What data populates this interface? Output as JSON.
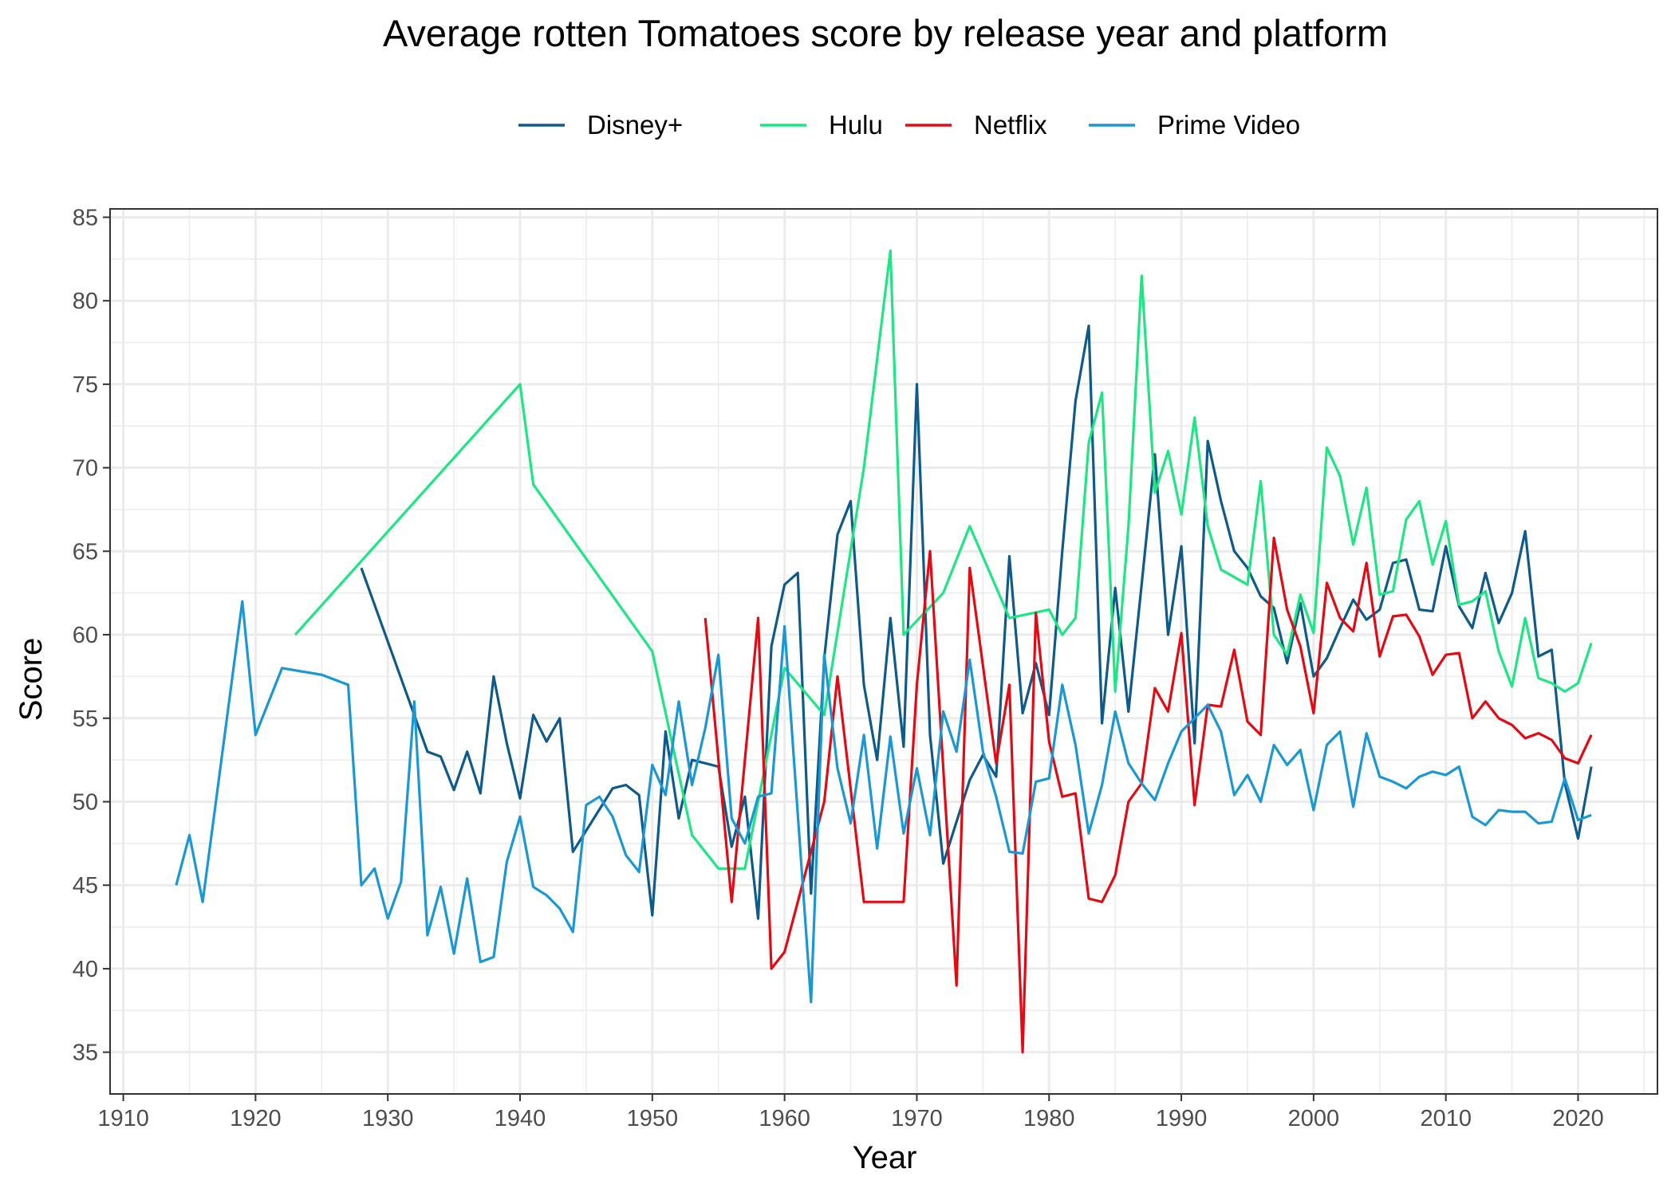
{
  "chart_data": {
    "type": "line",
    "title": "Average rotten Tomatoes score by release year and platform",
    "xlabel": "Year",
    "ylabel": "Score",
    "xlim": [
      1909,
      2026
    ],
    "ylim": [
      32.5,
      85.5
    ],
    "x_ticks": [
      1910,
      1920,
      1930,
      1940,
      1950,
      1960,
      1970,
      1980,
      1990,
      2000,
      2010,
      2020
    ],
    "y_ticks": [
      35,
      40,
      45,
      50,
      55,
      60,
      65,
      70,
      75,
      80,
      85
    ],
    "grid": true,
    "legend_position": "top",
    "series": [
      {
        "name": "Disney+",
        "color": "#0e5a8a",
        "x": [
          1928,
          1933,
          1934,
          1935,
          1936,
          1937,
          1938,
          1939,
          1940,
          1941,
          1942,
          1943,
          1944,
          1947,
          1948,
          1949,
          1950,
          1951,
          1952,
          1953,
          1955,
          1956,
          1957,
          1958,
          1959,
          1960,
          1961,
          1962,
          1963,
          1964,
          1965,
          1966,
          1967,
          1968,
          1969,
          1970,
          1971,
          1972,
          1974,
          1975,
          1976,
          1977,
          1978,
          1979,
          1980,
          1981,
          1982,
          1983,
          1984,
          1985,
          1986,
          1987,
          1988,
          1989,
          1990,
          1991,
          1992,
          1993,
          1994,
          1995,
          1996,
          1997,
          1998,
          1999,
          2000,
          2001,
          2002,
          2003,
          2004,
          2005,
          2006,
          2007,
          2008,
          2009,
          2010,
          2011,
          2012,
          2013,
          2014,
          2015,
          2016,
          2017,
          2018,
          2019,
          2020,
          2021
        ],
        "values": [
          64,
          53,
          52.7,
          50.7,
          53,
          50.5,
          57.5,
          53.5,
          50.2,
          55.2,
          53.6,
          55,
          47,
          50.8,
          51,
          50.4,
          43.2,
          54.2,
          49,
          52.5,
          52.1,
          47.3,
          50.3,
          43,
          59.3,
          63,
          63.7,
          44.5,
          58.6,
          66,
          68,
          57,
          52.5,
          61,
          53.3,
          75,
          54,
          46.3,
          51.3,
          52.8,
          51.5,
          64.7,
          55.3,
          58.3,
          55.2,
          65,
          74,
          78.5,
          54.7,
          62.8,
          55.4,
          63,
          70.8,
          60,
          65.3,
          53.5,
          71.6,
          68,
          65,
          64,
          62.3,
          61.6,
          58.3,
          61.9,
          57.5,
          58.6,
          60.4,
          62.1,
          60.9,
          61.5,
          64.3,
          64.5,
          61.5,
          61.4,
          65.3,
          61.7,
          60.4,
          63.7,
          60.7,
          62.5,
          66.2,
          58.7,
          59.1,
          51.1,
          47.8,
          52.1
        ]
      },
      {
        "name": "Hulu",
        "color": "#1ce783",
        "x": [
          1923,
          1940,
          1941,
          1950,
          1953,
          1955,
          1957,
          1960,
          1963,
          1966,
          1968,
          1969,
          1972,
          1974,
          1977,
          1980,
          1981,
          1982,
          1983,
          1984,
          1985,
          1986,
          1987,
          1988,
          1989,
          1990,
          1991,
          1992,
          1993,
          1995,
          1996,
          1997,
          1998,
          1999,
          2000,
          2001,
          2002,
          2003,
          2004,
          2005,
          2006,
          2007,
          2008,
          2009,
          2010,
          2011,
          2012,
          2013,
          2014,
          2015,
          2016,
          2017,
          2018,
          2019,
          2020,
          2021
        ],
        "values": [
          60,
          75,
          69,
          59,
          48,
          46,
          46,
          58,
          55.2,
          70,
          83,
          60,
          62.5,
          66.5,
          61,
          61.5,
          60,
          61,
          71.5,
          74.5,
          56.6,
          66.5,
          81.5,
          68.5,
          71,
          67.2,
          73,
          66.5,
          63.9,
          63,
          69.2,
          60,
          58.8,
          62.4,
          60.1,
          71.2,
          69.5,
          65.4,
          68.8,
          62.4,
          62.6,
          66.9,
          68,
          64.2,
          66.8,
          61.8,
          62,
          62.6,
          59,
          56.9,
          61,
          57.4,
          57.1,
          56.6,
          57.1,
          59.5
        ]
      },
      {
        "name": "Netflix",
        "color": "#e50914",
        "x": [
          1954,
          1956,
          1958,
          1959,
          1960,
          1963,
          1964,
          1966,
          1969,
          1970,
          1971,
          1973,
          1974,
          1976,
          1977,
          1978,
          1979,
          1980,
          1981,
          1982,
          1983,
          1984,
          1985,
          1986,
          1987,
          1988,
          1989,
          1990,
          1991,
          1992,
          1993,
          1994,
          1995,
          1996,
          1997,
          1998,
          1999,
          2000,
          2001,
          2002,
          2003,
          2004,
          2005,
          2006,
          2007,
          2008,
          2009,
          2010,
          2011,
          2012,
          2013,
          2014,
          2015,
          2016,
          2017,
          2018,
          2019,
          2020,
          2021
        ],
        "values": [
          61,
          44,
          61,
          40,
          41,
          50,
          57.5,
          44,
          44,
          57,
          65,
          39,
          64,
          52.3,
          57,
          35,
          61.3,
          53.6,
          50.3,
          50.5,
          44.2,
          44,
          45.6,
          50,
          51.1,
          56.8,
          55.4,
          60.1,
          49.8,
          55.8,
          55.7,
          59.1,
          54.8,
          54,
          65.8,
          61.5,
          59.3,
          55.3,
          63.1,
          61,
          60.2,
          64.3,
          58.7,
          61.1,
          61.2,
          59.9,
          57.6,
          58.8,
          58.9,
          55,
          56,
          55,
          54.6,
          53.8,
          54.1,
          53.7,
          52.6,
          52.3,
          54
        ]
      },
      {
        "name": "Prime Video",
        "color": "#1a98d5",
        "x": [
          1914,
          1915,
          1916,
          1919,
          1920,
          1922,
          1925,
          1927,
          1928,
          1929,
          1930,
          1931,
          1932,
          1933,
          1934,
          1935,
          1936,
          1937,
          1938,
          1939,
          1940,
          1941,
          1942,
          1943,
          1944,
          1945,
          1946,
          1947,
          1948,
          1949,
          1950,
          1951,
          1952,
          1953,
          1954,
          1955,
          1956,
          1957,
          1958,
          1959,
          1960,
          1962,
          1963,
          1964,
          1965,
          1966,
          1967,
          1968,
          1969,
          1970,
          1971,
          1972,
          1973,
          1974,
          1975,
          1976,
          1977,
          1978,
          1979,
          1980,
          1981,
          1982,
          1983,
          1984,
          1985,
          1986,
          1987,
          1988,
          1989,
          1990,
          1991,
          1992,
          1993,
          1994,
          1995,
          1996,
          1997,
          1998,
          1999,
          2000,
          2001,
          2002,
          2003,
          2004,
          2005,
          2006,
          2007,
          2008,
          2009,
          2010,
          2011,
          2012,
          2013,
          2014,
          2015,
          2016,
          2017,
          2018,
          2019,
          2020,
          2021
        ],
        "values": [
          45,
          48,
          44,
          62,
          54,
          58,
          57.6,
          57,
          45,
          46,
          43,
          45.2,
          56,
          42,
          44.9,
          40.9,
          45.4,
          40.4,
          40.7,
          46.4,
          49.1,
          44.9,
          44.4,
          43.6,
          42.2,
          49.8,
          50.3,
          49.1,
          46.8,
          45.8,
          52.2,
          50.4,
          56,
          51,
          54.4,
          58.8,
          49,
          47.5,
          50.3,
          50.5,
          60.5,
          38,
          58.8,
          52,
          48.7,
          54,
          47.2,
          53.9,
          48.1,
          52,
          48,
          55.4,
          53,
          58.5,
          53,
          50.3,
          47,
          46.9,
          51.2,
          51.4,
          57,
          53.4,
          48.1,
          51,
          55.4,
          52.3,
          51.1,
          50.1,
          52.3,
          54.2,
          55,
          55.8,
          54.2,
          50.4,
          51.6,
          50,
          53.4,
          52.2,
          53.1,
          49.5,
          53.4,
          54.2,
          49.7,
          54.1,
          51.5,
          51.2,
          50.8,
          51.5,
          51.8,
          51.6,
          52.1,
          49.1,
          48.6,
          49.5,
          49.4,
          49.4,
          48.7,
          48.8,
          51.4,
          48.9,
          49.2
        ]
      }
    ]
  }
}
